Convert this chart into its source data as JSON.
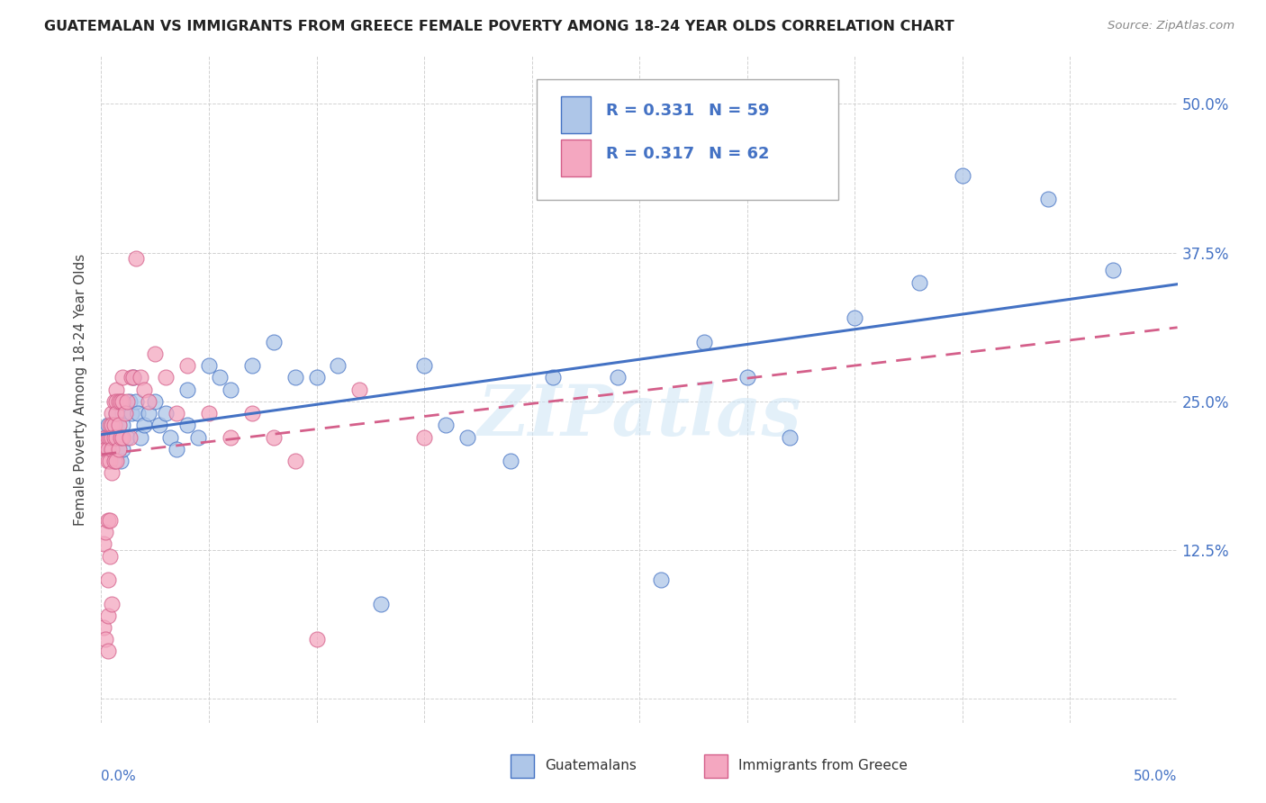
{
  "title": "GUATEMALAN VS IMMIGRANTS FROM GREECE FEMALE POVERTY AMONG 18-24 YEAR OLDS CORRELATION CHART",
  "source": "Source: ZipAtlas.com",
  "ylabel": "Female Poverty Among 18-24 Year Olds",
  "right_yticks": [
    "50.0%",
    "37.5%",
    "25.0%",
    "12.5%"
  ],
  "right_ytick_vals": [
    0.5,
    0.375,
    0.25,
    0.125
  ],
  "xlim": [
    0.0,
    0.5
  ],
  "ylim": [
    -0.02,
    0.54
  ],
  "legend_r1": "R = 0.331",
  "legend_n1": "N = 59",
  "legend_r2": "R = 0.317",
  "legend_n2": "N = 62",
  "color_blue": "#aec6e8",
  "color_pink": "#f4a7c0",
  "color_blue_text": "#4472c4",
  "color_pink_text": "#d45f8a",
  "trendline_blue": "#4472c4",
  "trendline_pink": "#d45f8a",
  "watermark": "ZIPatlas",
  "guatemalan_x": [
    0.002,
    0.003,
    0.004,
    0.004,
    0.005,
    0.005,
    0.005,
    0.006,
    0.006,
    0.007,
    0.007,
    0.008,
    0.008,
    0.009,
    0.009,
    0.01,
    0.01,
    0.01,
    0.012,
    0.013,
    0.014,
    0.015,
    0.016,
    0.017,
    0.018,
    0.02,
    0.022,
    0.025,
    0.027,
    0.03,
    0.032,
    0.035,
    0.04,
    0.04,
    0.045,
    0.05,
    0.055,
    0.06,
    0.07,
    0.08,
    0.09,
    0.1,
    0.11,
    0.13,
    0.15,
    0.16,
    0.17,
    0.19,
    0.21,
    0.24,
    0.26,
    0.28,
    0.3,
    0.32,
    0.35,
    0.38,
    0.4,
    0.44,
    0.47
  ],
  "guatemalan_y": [
    0.22,
    0.23,
    0.22,
    0.21,
    0.23,
    0.22,
    0.21,
    0.22,
    0.2,
    0.24,
    0.22,
    0.23,
    0.21,
    0.22,
    0.2,
    0.24,
    0.23,
    0.21,
    0.22,
    0.25,
    0.24,
    0.27,
    0.25,
    0.24,
    0.22,
    0.23,
    0.24,
    0.25,
    0.23,
    0.24,
    0.22,
    0.21,
    0.26,
    0.23,
    0.22,
    0.28,
    0.27,
    0.26,
    0.28,
    0.3,
    0.27,
    0.27,
    0.28,
    0.08,
    0.28,
    0.23,
    0.22,
    0.2,
    0.27,
    0.27,
    0.1,
    0.3,
    0.27,
    0.22,
    0.32,
    0.35,
    0.44,
    0.42,
    0.36
  ],
  "greece_x": [
    0.001,
    0.001,
    0.002,
    0.002,
    0.002,
    0.002,
    0.003,
    0.003,
    0.003,
    0.003,
    0.003,
    0.003,
    0.003,
    0.004,
    0.004,
    0.004,
    0.004,
    0.004,
    0.005,
    0.005,
    0.005,
    0.005,
    0.005,
    0.005,
    0.006,
    0.006,
    0.006,
    0.006,
    0.007,
    0.007,
    0.007,
    0.007,
    0.007,
    0.008,
    0.008,
    0.008,
    0.009,
    0.009,
    0.01,
    0.01,
    0.01,
    0.011,
    0.012,
    0.013,
    0.014,
    0.015,
    0.016,
    0.018,
    0.02,
    0.022,
    0.025,
    0.03,
    0.035,
    0.04,
    0.05,
    0.06,
    0.07,
    0.08,
    0.09,
    0.1,
    0.12,
    0.15
  ],
  "greece_y": [
    0.13,
    0.06,
    0.22,
    0.21,
    0.14,
    0.05,
    0.22,
    0.21,
    0.2,
    0.15,
    0.1,
    0.07,
    0.04,
    0.23,
    0.22,
    0.2,
    0.15,
    0.12,
    0.24,
    0.23,
    0.22,
    0.21,
    0.19,
    0.08,
    0.25,
    0.23,
    0.22,
    0.2,
    0.26,
    0.25,
    0.24,
    0.22,
    0.2,
    0.25,
    0.23,
    0.21,
    0.25,
    0.22,
    0.27,
    0.25,
    0.22,
    0.24,
    0.25,
    0.22,
    0.27,
    0.27,
    0.37,
    0.27,
    0.26,
    0.25,
    0.29,
    0.27,
    0.24,
    0.28,
    0.24,
    0.22,
    0.24,
    0.22,
    0.2,
    0.05,
    0.26,
    0.22
  ]
}
